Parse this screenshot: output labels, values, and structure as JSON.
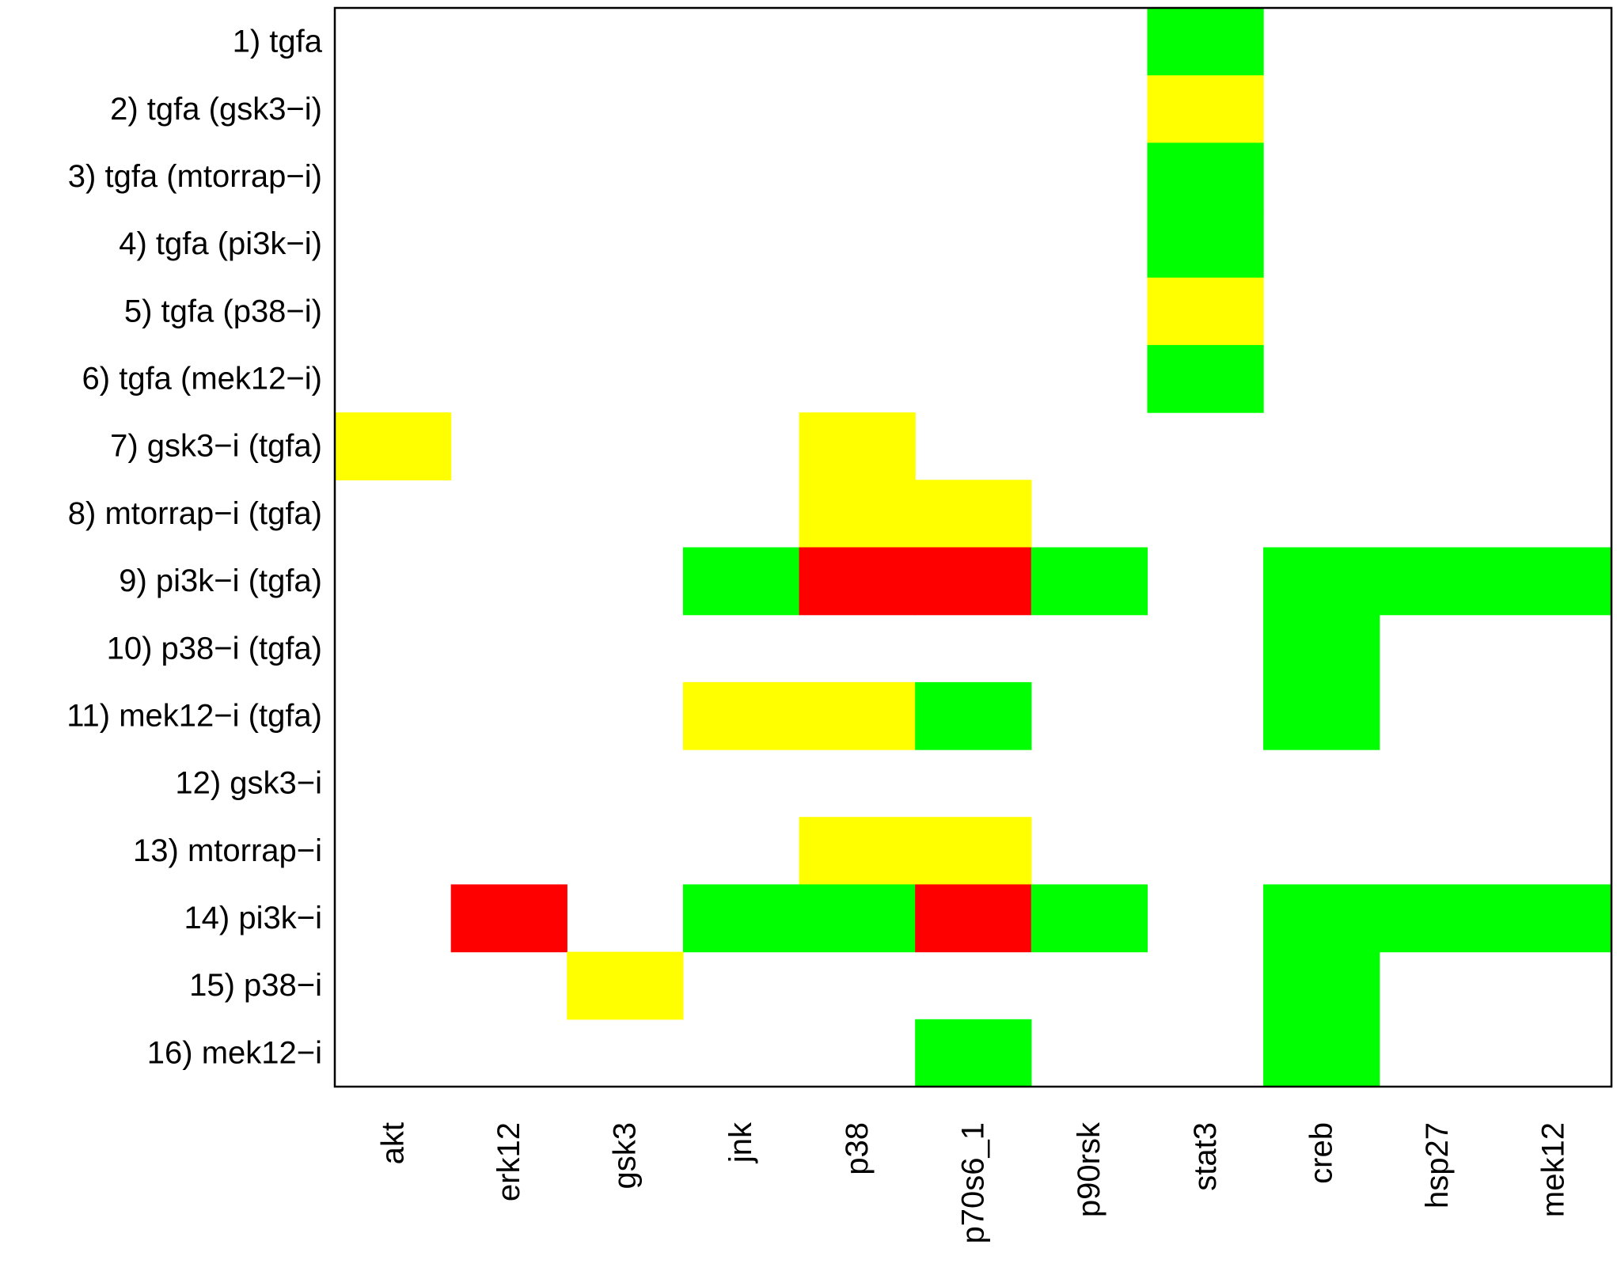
{
  "chart_data": {
    "type": "heatmap",
    "title": "",
    "xlabel": "",
    "ylabel": "",
    "columns": [
      "akt",
      "erk12",
      "gsk3",
      "jnk",
      "p38",
      "p70s6_1",
      "p90rsk",
      "stat3",
      "creb",
      "hsp27",
      "mek12"
    ],
    "rows": [
      "1) tgfa",
      "2) tgfa (gsk3−i)",
      "3) tgfa (mtorrap−i)",
      "4) tgfa (pi3k−i)",
      "5) tgfa (p38−i)",
      "6) tgfa (mek12−i)",
      "7) gsk3−i (tgfa)",
      "8) mtorrap−i (tgfa)",
      "9) pi3k−i (tgfa)",
      "10) p38−i (tgfa)",
      "11) mek12−i (tgfa)",
      "12) gsk3−i",
      "13) mtorrap−i",
      "14) pi3k−i",
      "15) p38−i",
      "16) mek12−i"
    ],
    "cell_states": [
      "none",
      "green",
      "yellow",
      "red"
    ],
    "colors": {
      "none": "#ffffff",
      "green": "#00ff00",
      "yellow": "#ffff00",
      "red": "#ff0000"
    },
    "values": [
      [
        "none",
        "none",
        "none",
        "none",
        "none",
        "none",
        "none",
        "green",
        "none",
        "none",
        "none"
      ],
      [
        "none",
        "none",
        "none",
        "none",
        "none",
        "none",
        "none",
        "yellow",
        "none",
        "none",
        "none"
      ],
      [
        "none",
        "none",
        "none",
        "none",
        "none",
        "none",
        "none",
        "green",
        "none",
        "none",
        "none"
      ],
      [
        "none",
        "none",
        "none",
        "none",
        "none",
        "none",
        "none",
        "green",
        "none",
        "none",
        "none"
      ],
      [
        "none",
        "none",
        "none",
        "none",
        "none",
        "none",
        "none",
        "yellow",
        "none",
        "none",
        "none"
      ],
      [
        "none",
        "none",
        "none",
        "none",
        "none",
        "none",
        "none",
        "green",
        "none",
        "none",
        "none"
      ],
      [
        "yellow",
        "none",
        "none",
        "none",
        "yellow",
        "none",
        "none",
        "none",
        "none",
        "none",
        "none"
      ],
      [
        "none",
        "none",
        "none",
        "none",
        "yellow",
        "yellow",
        "none",
        "none",
        "none",
        "none",
        "none"
      ],
      [
        "none",
        "none",
        "none",
        "green",
        "red",
        "red",
        "green",
        "none",
        "green",
        "green",
        "green"
      ],
      [
        "none",
        "none",
        "none",
        "none",
        "none",
        "none",
        "none",
        "none",
        "green",
        "none",
        "none"
      ],
      [
        "none",
        "none",
        "none",
        "yellow",
        "yellow",
        "green",
        "none",
        "none",
        "green",
        "none",
        "none"
      ],
      [
        "none",
        "none",
        "none",
        "none",
        "none",
        "none",
        "none",
        "none",
        "none",
        "none",
        "none"
      ],
      [
        "none",
        "none",
        "none",
        "none",
        "yellow",
        "yellow",
        "none",
        "none",
        "none",
        "none",
        "none"
      ],
      [
        "none",
        "red",
        "none",
        "green",
        "green",
        "red",
        "green",
        "none",
        "green",
        "green",
        "green"
      ],
      [
        "none",
        "none",
        "yellow",
        "none",
        "none",
        "none",
        "none",
        "none",
        "green",
        "none",
        "none"
      ],
      [
        "none",
        "none",
        "none",
        "none",
        "none",
        "green",
        "none",
        "none",
        "green",
        "none",
        "none"
      ]
    ],
    "grid": false,
    "legend": "none"
  }
}
